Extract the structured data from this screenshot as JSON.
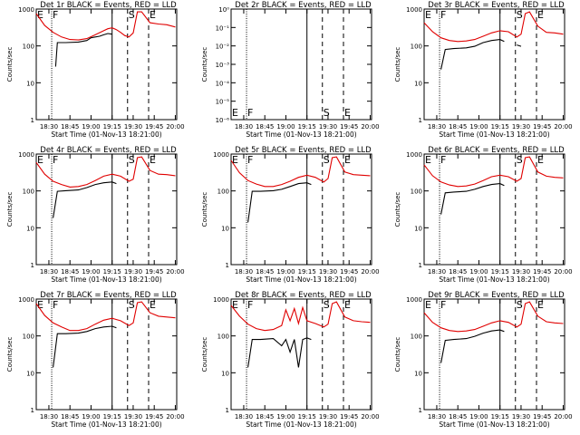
{
  "chart_data": [
    {
      "type": "line",
      "title": "Det 1r BLACK = Events, RED = LLD",
      "xlabel": "Start Time (01-Nov-13 18:21:00)",
      "ylabel": "Counts/sec",
      "x_ticks": [
        "18:30",
        "18:45",
        "19:00",
        "19:15",
        "19:30",
        "19:45",
        "20:00"
      ],
      "y_ticks": [
        "1",
        "10",
        "100",
        "1000"
      ],
      "ylim": [
        1,
        1200
      ],
      "xlim": [
        "18:21",
        "20:01"
      ],
      "y_scale": "log",
      "markers": [
        {
          "label": "E",
          "time": "18:21"
        },
        {
          "label": "F",
          "time": "18:32"
        },
        {
          "label": "S",
          "time": "19:26"
        },
        {
          "label": "E",
          "time": "19:41"
        }
      ],
      "series": [
        {
          "name": "BLACK",
          "color": "#000000",
          "x": [
            18.35,
            18.58,
            18.6,
            18.7,
            18.85,
            18.95,
            19.0,
            19.05,
            19.1,
            19.15,
            19.2,
            19.25,
            19.3,
            19.4,
            19.5,
            19.6,
            19.67,
            19.75,
            20.0
          ],
          "y": [
            null,
            30,
            140,
            140,
            145,
            160,
            190,
            200,
            210,
            230,
            250,
            240,
            null,
            null,
            null,
            null,
            null,
            null,
            null
          ]
        },
        {
          "name": "RED",
          "color": "#e00000",
          "x": [
            18.35,
            18.45,
            18.55,
            18.65,
            18.75,
            18.85,
            18.95,
            19.05,
            19.15,
            19.2,
            19.25,
            19.3,
            19.35,
            19.4,
            19.45,
            19.5,
            19.55,
            19.6,
            19.7,
            19.8,
            19.9,
            20.0
          ],
          "y": [
            900,
            420,
            270,
            200,
            170,
            165,
            180,
            230,
            300,
            340,
            360,
            320,
            270,
            220,
            200,
            260,
            1000,
            1000,
            500,
            460,
            440,
            380
          ]
        }
      ]
    },
    {
      "type": "line",
      "title": "Det 2r BLACK = Events, RED = LLD",
      "xlabel": "Start Time (01-Nov-13 18:21:00)",
      "ylabel": "Counts/sec",
      "x_ticks": [
        "18:30",
        "18:45",
        "19:00",
        "19:15",
        "19:30",
        "19:45",
        "20:00"
      ],
      "y_ticks": [
        "10⁻⁶",
        "10⁻⁵",
        "10⁻⁴",
        "10⁻³",
        "10⁻²",
        "10⁻¹",
        "10⁰"
      ],
      "ylim": [
        1e-06,
        1
      ],
      "xlim": [
        "18:21",
        "20:01"
      ],
      "y_scale": "log",
      "markers": [
        {
          "label": "E",
          "time": "18:21"
        },
        {
          "label": "F",
          "time": "18:32"
        },
        {
          "label": "S",
          "time": "19:26"
        },
        {
          "label": "E",
          "time": "19:41"
        }
      ],
      "series": []
    },
    {
      "type": "line",
      "title": "Det 3r BLACK = Events, RED = LLD",
      "xlabel": "Start Time (01-Nov-13 18:21:00)",
      "ylabel": "Counts/sec",
      "x_ticks": [
        "18:30",
        "18:45",
        "19:00",
        "19:15",
        "19:30",
        "19:45",
        "20:00"
      ],
      "y_ticks": [
        "1",
        "10",
        "100",
        "1000"
      ],
      "ylim": [
        1,
        1200
      ],
      "xlim": [
        "18:21",
        "20:01"
      ],
      "y_scale": "log",
      "markers": [
        {
          "label": "E",
          "time": "18:21"
        },
        {
          "label": "F",
          "time": "18:32"
        },
        {
          "label": "S",
          "time": "19:26"
        },
        {
          "label": "E",
          "time": "19:41"
        }
      ],
      "series": [
        {
          "name": "BLACK",
          "color": "#000000",
          "x": [
            18.55,
            18.6,
            18.7,
            18.85,
            18.95,
            19.05,
            19.15,
            19.25,
            19.3,
            19.4,
            19.45,
            19.5
          ],
          "y": [
            25,
            90,
            95,
            100,
            110,
            140,
            160,
            170,
            150,
            null,
            120,
            110
          ]
        },
        {
          "name": "RED",
          "color": "#e00000",
          "x": [
            18.35,
            18.45,
            18.55,
            18.65,
            18.75,
            18.85,
            18.95,
            19.05,
            19.15,
            19.25,
            19.35,
            19.45,
            19.5,
            19.55,
            19.6,
            19.7,
            19.8,
            19.9,
            20.0
          ],
          "y": [
            500,
            280,
            190,
            160,
            150,
            155,
            170,
            210,
            260,
            300,
            280,
            200,
            240,
            900,
            1000,
            400,
            270,
            260,
            240
          ]
        }
      ]
    },
    {
      "type": "line",
      "title": "Det 4r BLACK = Events, RED = LLD",
      "xlabel": "Start Time (01-Nov-13 18:21:00)",
      "ylabel": "Counts/sec",
      "x_ticks": [
        "18:30",
        "18:45",
        "19:00",
        "19:15",
        "19:30",
        "19:45",
        "20:00"
      ],
      "y_ticks": [
        "1",
        "10",
        "100",
        "1000"
      ],
      "ylim": [
        1,
        1200
      ],
      "xlim": [
        "18:21",
        "20:01"
      ],
      "y_scale": "log",
      "markers": [
        {
          "label": "E",
          "time": "18:21"
        },
        {
          "label": "F",
          "time": "18:32"
        },
        {
          "label": "S",
          "time": "19:26"
        },
        {
          "label": "E",
          "time": "19:41"
        }
      ],
      "series": [
        {
          "name": "BLACK",
          "color": "#000000",
          "x": [
            18.55,
            18.6,
            18.7,
            18.85,
            18.95,
            19.05,
            19.15,
            19.25,
            19.3
          ],
          "y": [
            20,
            110,
            115,
            120,
            140,
            170,
            190,
            200,
            180
          ]
        },
        {
          "name": "RED",
          "color": "#e00000",
          "x": [
            18.35,
            18.45,
            18.55,
            18.65,
            18.75,
            18.85,
            18.95,
            19.05,
            19.15,
            19.25,
            19.35,
            19.45,
            19.5,
            19.55,
            19.6,
            19.7,
            19.8,
            19.9,
            20.0
          ],
          "y": [
            700,
            330,
            210,
            170,
            145,
            150,
            170,
            220,
            290,
            330,
            290,
            210,
            240,
            950,
            1000,
            420,
            330,
            320,
            300
          ]
        }
      ]
    },
    {
      "type": "line",
      "title": "Det 5r BLACK = Events, RED = LLD",
      "xlabel": "Start Time (01-Nov-13 18:21:00)",
      "ylabel": "Counts/sec",
      "x_ticks": [
        "18:30",
        "18:45",
        "19:00",
        "19:15",
        "19:30",
        "19:45",
        "20:00"
      ],
      "y_ticks": [
        "1",
        "10",
        "100",
        "1000"
      ],
      "ylim": [
        1,
        1200
      ],
      "xlim": [
        "18:21",
        "20:01"
      ],
      "y_scale": "log",
      "markers": [
        {
          "label": "E",
          "time": "18:21"
        },
        {
          "label": "F",
          "time": "18:32"
        },
        {
          "label": "S",
          "time": "19:26"
        },
        {
          "label": "E",
          "time": "19:41"
        }
      ],
      "series": [
        {
          "name": "BLACK",
          "color": "#000000",
          "x": [
            18.55,
            18.6,
            18.7,
            18.85,
            18.95,
            19.05,
            19.15,
            19.25,
            19.3
          ],
          "y": [
            15,
            110,
            110,
            115,
            125,
            150,
            180,
            190,
            170
          ]
        },
        {
          "name": "RED",
          "color": "#e00000",
          "x": [
            18.35,
            18.45,
            18.55,
            18.65,
            18.75,
            18.85,
            18.95,
            19.05,
            19.15,
            19.25,
            19.35,
            19.45,
            19.5,
            19.55,
            19.6,
            19.7,
            19.8,
            19.9,
            20.0
          ],
          "y": [
            800,
            360,
            220,
            175,
            150,
            150,
            170,
            210,
            270,
            310,
            270,
            200,
            250,
            950,
            1000,
            380,
            320,
            310,
            300
          ]
        }
      ]
    },
    {
      "type": "line",
      "title": "Det 6r BLACK = Events, RED = LLD",
      "xlabel": "Start Time (01-Nov-13 18:21:00)",
      "ylabel": "Counts/sec",
      "x_ticks": [
        "18:30",
        "18:45",
        "19:00",
        "19:15",
        "19:30",
        "19:45",
        "20:00"
      ],
      "y_ticks": [
        "1",
        "10",
        "100",
        "1000"
      ],
      "ylim": [
        1,
        1200
      ],
      "xlim": [
        "18:21",
        "20:01"
      ],
      "y_scale": "log",
      "markers": [
        {
          "label": "E",
          "time": "18:21"
        },
        {
          "label": "F",
          "time": "18:32"
        },
        {
          "label": "S",
          "time": "19:26"
        },
        {
          "label": "E",
          "time": "19:41"
        }
      ],
      "series": [
        {
          "name": "BLACK",
          "color": "#000000",
          "x": [
            18.55,
            18.6,
            18.7,
            18.85,
            18.95,
            19.05,
            19.15,
            19.25,
            19.3,
            19.4,
            19.45
          ],
          "y": [
            25,
            100,
            105,
            110,
            125,
            150,
            170,
            180,
            160,
            null,
            130
          ]
        },
        {
          "name": "RED",
          "color": "#e00000",
          "x": [
            18.35,
            18.45,
            18.55,
            18.65,
            18.75,
            18.85,
            18.95,
            19.05,
            19.15,
            19.25,
            19.35,
            19.45,
            19.5,
            19.55,
            19.6,
            19.7,
            19.8,
            19.9,
            20.0
          ],
          "y": [
            600,
            300,
            200,
            165,
            150,
            155,
            175,
            220,
            280,
            310,
            280,
            210,
            250,
            950,
            1000,
            380,
            290,
            270,
            260
          ]
        }
      ]
    },
    {
      "type": "line",
      "title": "Det 7r BLACK = Events, RED = LLD",
      "xlabel": "Start Time (01-Nov-13 18:21:00)",
      "ylabel": "Counts/sec",
      "x_ticks": [
        "18:30",
        "18:45",
        "19:00",
        "19:15",
        "19:30",
        "19:45",
        "20:00"
      ],
      "y_ticks": [
        "1",
        "10",
        "100",
        "1000"
      ],
      "ylim": [
        1,
        1200
      ],
      "xlim": [
        "18:21",
        "20:01"
      ],
      "y_scale": "log",
      "markers": [
        {
          "label": "E",
          "time": "18:21"
        },
        {
          "label": "F",
          "time": "18:32"
        },
        {
          "label": "S",
          "time": "19:26"
        },
        {
          "label": "E",
          "time": "19:41"
        }
      ],
      "series": [
        {
          "name": "BLACK",
          "color": "#000000",
          "x": [
            18.55,
            18.6,
            18.7,
            18.85,
            18.95,
            19.05,
            19.15,
            19.25,
            19.3
          ],
          "y": [
            15,
            130,
            130,
            135,
            150,
            180,
            200,
            210,
            190
          ]
        },
        {
          "name": "RED",
          "color": "#e00000",
          "x": [
            18.35,
            18.45,
            18.55,
            18.65,
            18.75,
            18.85,
            18.95,
            19.05,
            19.15,
            19.25,
            19.35,
            19.45,
            19.5,
            19.55,
            19.6,
            19.7,
            19.8,
            19.9,
            20.0
          ],
          "y": [
            900,
            420,
            260,
            200,
            160,
            160,
            180,
            240,
            310,
            350,
            300,
            220,
            260,
            950,
            1000,
            500,
            400,
            380,
            360
          ]
        }
      ]
    },
    {
      "type": "line",
      "title": "Det 8r BLACK = Events, RED = LLD",
      "xlabel": "Start Time (01-Nov-13 18:21:00)",
      "ylabel": "Counts/sec",
      "x_ticks": [
        "18:30",
        "18:45",
        "19:00",
        "19:15",
        "19:30",
        "19:45",
        "20:00"
      ],
      "y_ticks": [
        "1",
        "10",
        "100",
        "1000"
      ],
      "ylim": [
        1,
        1200
      ],
      "xlim": [
        "18:21",
        "20:01"
      ],
      "y_scale": "log",
      "markers": [
        {
          "label": "E",
          "time": "18:21"
        },
        {
          "label": "F",
          "time": "18:32"
        },
        {
          "label": "S",
          "time": "19:26"
        },
        {
          "label": "E",
          "time": "19:41"
        }
      ],
      "series": [
        {
          "name": "BLACK",
          "color": "#000000",
          "x": [
            18.55,
            18.6,
            18.7,
            18.85,
            18.95,
            19.0,
            19.05,
            19.1,
            19.15,
            19.2,
            19.25,
            19.3
          ],
          "y": [
            15,
            90,
            90,
            95,
            60,
            90,
            40,
            90,
            15,
            90,
            100,
            90
          ]
        },
        {
          "name": "RED",
          "color": "#e00000",
          "x": [
            18.35,
            18.45,
            18.55,
            18.65,
            18.75,
            18.85,
            18.95,
            19.0,
            19.05,
            19.1,
            19.15,
            19.2,
            19.25,
            19.35,
            19.45,
            19.5,
            19.55,
            19.6,
            19.7,
            19.8,
            19.9,
            20.0
          ],
          "y": [
            800,
            400,
            240,
            180,
            160,
            170,
            220,
            600,
            300,
            650,
            250,
            700,
            300,
            250,
            200,
            240,
            900,
            1000,
            380,
            300,
            280,
            270
          ]
        }
      ]
    },
    {
      "type": "line",
      "title": "Det 9r BLACK = Events, RED = LLD",
      "xlabel": "Start Time (01-Nov-13 18:21:00)",
      "ylabel": "Counts/sec",
      "x_ticks": [
        "18:30",
        "18:45",
        "19:00",
        "19:15",
        "19:30",
        "19:45",
        "20:00"
      ],
      "y_ticks": [
        "1",
        "10",
        "100",
        "1000"
      ],
      "ylim": [
        1,
        1200
      ],
      "xlim": [
        "18:21",
        "20:01"
      ],
      "y_scale": "log",
      "markers": [
        {
          "label": "E",
          "time": "18:21"
        },
        {
          "label": "F",
          "time": "18:32"
        },
        {
          "label": "S",
          "time": "19:26"
        },
        {
          "label": "E",
          "time": "19:41"
        }
      ],
      "series": [
        {
          "name": "BLACK",
          "color": "#000000",
          "x": [
            18.55,
            18.6,
            18.7,
            18.85,
            18.95,
            19.05,
            19.15,
            19.25,
            19.3,
            19.4,
            19.45
          ],
          "y": [
            20,
            85,
            90,
            95,
            110,
            135,
            155,
            165,
            150,
            null,
            120
          ]
        },
        {
          "name": "RED",
          "color": "#e00000",
          "x": [
            18.35,
            18.45,
            18.55,
            18.65,
            18.75,
            18.85,
            18.95,
            19.05,
            19.15,
            19.25,
            19.35,
            19.45,
            19.5,
            19.55,
            19.6,
            19.7,
            19.8,
            19.9,
            20.0
          ],
          "y": [
            500,
            270,
            190,
            160,
            150,
            155,
            170,
            210,
            260,
            300,
            270,
            200,
            240,
            900,
            1000,
            400,
            280,
            260,
            250
          ]
        }
      ]
    }
  ]
}
